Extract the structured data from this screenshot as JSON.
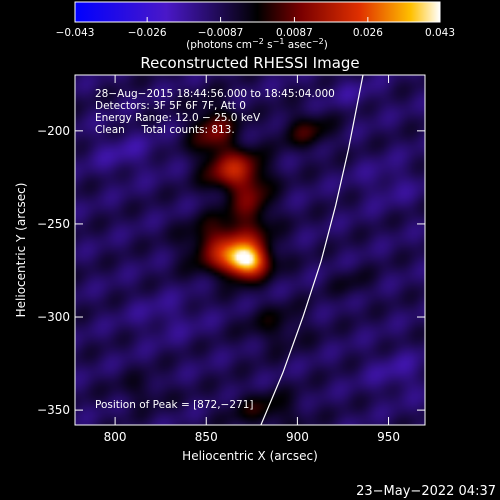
{
  "chart_data": {
    "type": "heatmap",
    "title": "Reconstructed RHESSI Image",
    "xlabel": "Heliocentric X (arcsec)",
    "ylabel": "Heliocentric Y (arcsec)",
    "xlim": [
      778,
      970
    ],
    "ylim": [
      -358,
      -170
    ],
    "xticks": [
      800,
      850,
      900,
      950
    ],
    "yticks": [
      -200,
      -250,
      -300,
      -350
    ],
    "colorbar": {
      "range": [
        -0.043,
        0.043
      ],
      "ticks": [
        -0.043,
        -0.026,
        -0.0087,
        0.0087,
        0.026,
        0.043
      ],
      "tick_labels": [
        "−0.043",
        "−0.026",
        "−0.0087",
        "0.0087",
        "0.026",
        "0.043"
      ],
      "unit_label_main": "(photons cm",
      "unit_sup1": "−2",
      "unit_mid": " s",
      "unit_sup2": "−1",
      "unit_mid2": " asec",
      "unit_sup3": "−2",
      "unit_close": ")"
    },
    "annotations": [
      "28−Aug−2015 18:44:56.000 to 18:45:04.000",
      "Detectors: 3F 5F 6F 7F, Att 0",
      "Energy Range: 12.0 − 25.0 keV",
      "Clean     Total counts: 813."
    ],
    "peak_text": "Position of Peak = [872,−271]",
    "peak": [
      872,
      -271
    ],
    "sources": [
      {
        "x": 872,
        "y": -270,
        "value": 0.043,
        "sx": 8,
        "sy": 6
      },
      {
        "x": 862,
        "y": -262,
        "value": 0.026,
        "sx": 14,
        "sy": 10
      },
      {
        "x": 866,
        "y": -222,
        "value": 0.026,
        "sx": 11,
        "sy": 8
      },
      {
        "x": 854,
        "y": -200,
        "value": 0.018,
        "sx": 9,
        "sy": 10
      },
      {
        "x": 875,
        "y": -240,
        "value": 0.014,
        "sx": 8,
        "sy": 9
      },
      {
        "x": 905,
        "y": -200,
        "value": 0.012,
        "sx": 10,
        "sy": 7
      },
      {
        "x": 888,
        "y": -305,
        "value": 0.008,
        "sx": 12,
        "sy": 8
      },
      {
        "x": 882,
        "y": -350,
        "value": 0.01,
        "sx": 14,
        "sy": 7
      },
      {
        "x": 815,
        "y": -340,
        "value": 0.006,
        "sx": 10,
        "sy": 6
      },
      {
        "x": 930,
        "y": -282,
        "value": 0.005,
        "sx": 8,
        "sy": 6
      },
      {
        "x": 805,
        "y": -212,
        "value": -0.006,
        "sx": 14,
        "sy": 8
      },
      {
        "x": 950,
        "y": -228,
        "value": -0.005,
        "sx": 12,
        "sy": 8
      },
      {
        "x": 955,
        "y": -330,
        "value": -0.006,
        "sx": 12,
        "sy": 8
      },
      {
        "x": 828,
        "y": -300,
        "value": -0.005,
        "sx": 14,
        "sy": 8
      },
      {
        "x": 930,
        "y": -180,
        "value": -0.004,
        "sx": 12,
        "sy": 6
      }
    ],
    "limb": [
      [
        880,
        -358
      ],
      [
        892,
        -330
      ],
      [
        903,
        -300
      ],
      [
        913,
        -270
      ],
      [
        921,
        -240
      ],
      [
        928,
        -210
      ],
      [
        936,
        -170
      ]
    ]
  },
  "timestamp": "23−May−2022 04:37"
}
